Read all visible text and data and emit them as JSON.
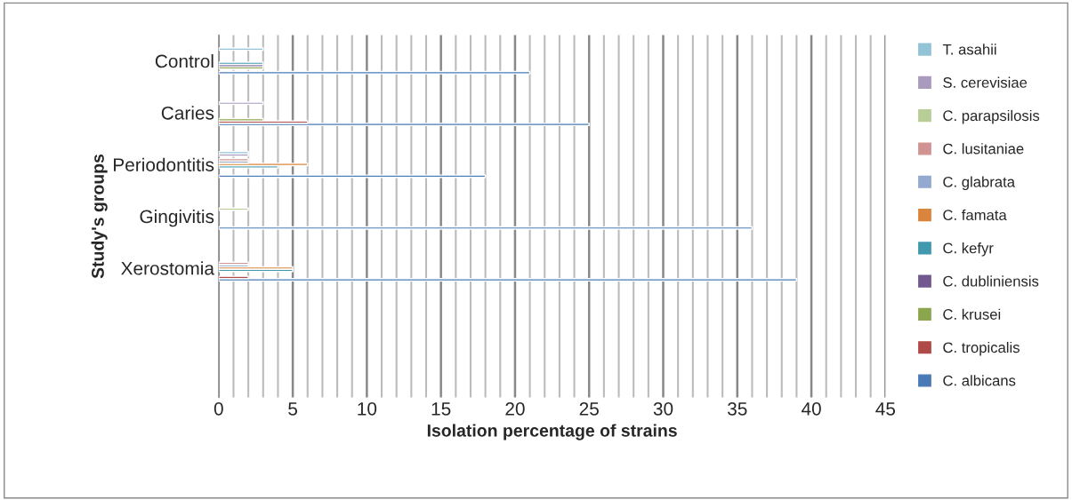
{
  "chart_data": {
    "type": "bar",
    "orientation": "horizontal",
    "xlabel": "Isolation percentage of strains",
    "ylabel": "Study's groups",
    "categories": [
      "Control",
      "Caries",
      "Periodontitis",
      "Gingivitis",
      "Xerostomia",
      null,
      null
    ],
    "series": [
      {
        "name": "C. albicans",
        "color": "#4a7ab5",
        "values": [
          21,
          25,
          18,
          36,
          39,
          null,
          null
        ]
      },
      {
        "name": "C. tropicalis",
        "color": "#b04a47",
        "values": [
          null,
          6,
          null,
          null,
          2,
          null,
          null
        ]
      },
      {
        "name": "C. krusei",
        "color": "#8ca64e",
        "values": [
          3,
          3,
          null,
          null,
          null,
          null,
          null
        ]
      },
      {
        "name": "C. dubliniensis",
        "color": "#71588f",
        "values": [
          3,
          null,
          null,
          null,
          null,
          null,
          null
        ]
      },
      {
        "name": "C. kefyr",
        "color": "#4198af",
        "values": [
          3,
          null,
          4,
          null,
          5,
          null,
          null
        ]
      },
      {
        "name": "C. famata",
        "color": "#db843d",
        "values": [
          null,
          null,
          6,
          null,
          5,
          null,
          null
        ]
      },
      {
        "name": "C. glabrata",
        "color": "#93a9cf",
        "values": [
          null,
          null,
          2,
          null,
          2,
          null,
          null
        ]
      },
      {
        "name": "C. lusitaniae",
        "color": "#d19392",
        "values": [
          null,
          null,
          2,
          null,
          2,
          null,
          null
        ]
      },
      {
        "name": "C. parapsilosis",
        "color": "#b9cd96",
        "values": [
          null,
          null,
          null,
          2,
          null,
          null,
          null
        ]
      },
      {
        "name": "S. cerevisiae",
        "color": "#a99bbd",
        "values": [
          null,
          3,
          2,
          null,
          null,
          null,
          null
        ]
      },
      {
        "name": "T. asahii",
        "color": "#92c3d6",
        "values": [
          3,
          null,
          2,
          null,
          null,
          null,
          null
        ]
      }
    ],
    "xlim": [
      0,
      45
    ],
    "xticks": [
      0,
      {
        "value": 1,
        "label": null
      },
      {
        "value": 2,
        "label": null
      },
      {
        "value": 3,
        "label": null
      },
      {
        "value": 4,
        "label": null
      },
      5,
      {
        "value": 6,
        "label": null
      },
      {
        "value": 7,
        "label": null
      },
      {
        "value": 8,
        "label": null
      },
      {
        "value": 9,
        "label": null
      },
      10,
      {
        "value": 11,
        "label": null
      },
      {
        "value": 12,
        "label": null
      },
      {
        "value": 13,
        "label": null
      },
      {
        "value": 14,
        "label": null
      },
      15,
      {
        "value": 16,
        "label": null
      },
      {
        "value": 17,
        "label": null
      },
      {
        "value": 18,
        "label": null
      },
      {
        "value": 19,
        "label": null
      },
      20,
      {
        "value": 21,
        "label": null
      },
      {
        "value": 22,
        "label": null
      },
      {
        "value": 23,
        "label": null
      },
      {
        "value": 24,
        "label": null
      },
      25,
      {
        "value": 26,
        "label": null
      },
      {
        "value": 27,
        "label": null
      },
      {
        "value": 28,
        "label": null
      },
      {
        "value": 29,
        "label": null
      },
      30,
      {
        "value": 31,
        "label": null
      },
      {
        "value": 32,
        "label": null
      },
      {
        "value": 33,
        "label": null
      },
      {
        "value": 34,
        "label": null
      },
      35,
      {
        "value": 36,
        "label": null
      },
      {
        "value": 37,
        "label": null
      },
      {
        "value": 38,
        "label": null
      },
      {
        "value": 39,
        "label": null
      },
      40,
      {
        "value": 41,
        "label": null
      },
      {
        "value": 42,
        "label": null
      },
      {
        "value": 43,
        "label": null
      },
      {
        "value": 44,
        "label": null
      },
      45
    ],
    "grid": "x",
    "legend": "right"
  }
}
